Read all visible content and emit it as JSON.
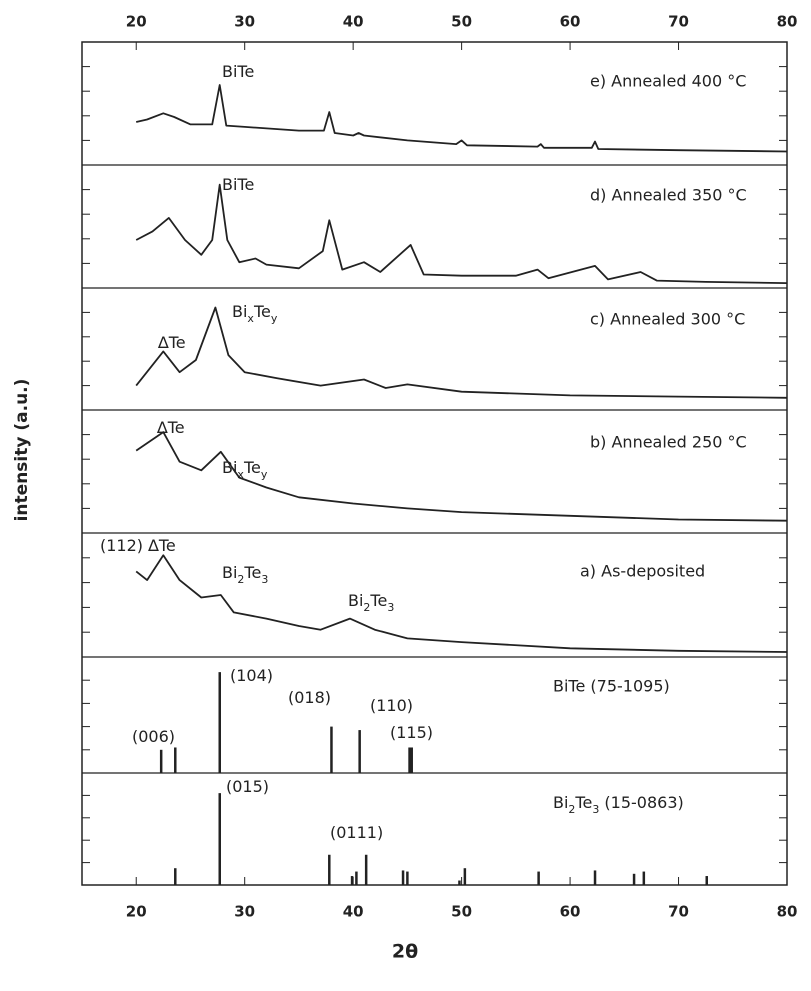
{
  "chart_data": {
    "type": "stacked_xrd",
    "xlabel": "2θ",
    "ylabel": "intensity (a.u.)",
    "xlim": [
      15,
      80
    ],
    "xticks": [
      20,
      30,
      40,
      50,
      60,
      70,
      80
    ],
    "ylim": [
      0,
      100
    ],
    "color": "#222222",
    "panels": [
      {
        "kind": "line",
        "label": "e) Annealed 400 °C",
        "annotations": [
          {
            "parts": [
              "BiTe"
            ],
            "sub": [
              false
            ]
          }
        ],
        "x": [
          20,
          21,
          22.5,
          23.5,
          25,
          27,
          27.7,
          28.3,
          30,
          35,
          37.3,
          37.8,
          38.3,
          40,
          40.5,
          41,
          45,
          49.5,
          50,
          50.5,
          57,
          57.3,
          57.6,
          62,
          62.3,
          62.6,
          70,
          80
        ],
        "values": [
          35,
          37,
          42,
          39,
          33,
          33,
          65,
          32,
          31,
          28,
          28,
          43,
          26,
          24,
          26,
          24,
          20,
          17,
          20,
          16,
          15,
          17,
          14,
          14,
          19,
          13,
          12,
          11
        ]
      },
      {
        "kind": "line",
        "label": "d) Annealed 350 °C",
        "annotations": [
          {
            "parts": [
              "BiTe"
            ],
            "sub": [
              false
            ]
          }
        ],
        "x": [
          20,
          21.5,
          23,
          24.5,
          26,
          27,
          27.7,
          28.4,
          29.5,
          31,
          32,
          35,
          37.2,
          37.8,
          39,
          41,
          42.5,
          45.3,
          46.5,
          50,
          55,
          57,
          58,
          62.3,
          63.5,
          66.5,
          68,
          72.5,
          80
        ],
        "values": [
          39,
          46,
          57,
          39,
          27,
          39,
          84,
          39,
          21,
          24,
          19,
          16,
          30,
          55,
          15,
          21,
          13,
          35,
          11,
          10,
          10,
          15,
          8,
          18,
          7,
          13,
          6,
          5,
          4
        ]
      },
      {
        "kind": "line",
        "label": "c) Annealed 300 °C",
        "annotations": [
          {
            "parts": [
              "Bi",
              "x",
              "Te",
              "y"
            ],
            "sub": [
              false,
              true,
              false,
              true
            ]
          },
          {
            "parts": [
              "∆Te"
            ],
            "sub": [
              false
            ]
          }
        ],
        "x": [
          20,
          22.5,
          24,
          25.5,
          27.3,
          28.5,
          30,
          33,
          37,
          41,
          43,
          45,
          50,
          60,
          70,
          80
        ],
        "values": [
          20,
          48,
          31,
          41,
          84,
          45,
          31,
          26,
          20,
          25,
          18,
          21,
          15,
          12,
          11,
          10
        ]
      },
      {
        "kind": "line",
        "label": "b) Annealed 250 °C",
        "annotations": [
          {
            "parts": [
              "∆Te"
            ],
            "sub": [
              false
            ]
          },
          {
            "parts": [
              "Bi",
              "x",
              "Te",
              "y"
            ],
            "sub": [
              false,
              true,
              false,
              true
            ]
          }
        ],
        "x": [
          20,
          22.5,
          24,
          26,
          27.8,
          29.5,
          32,
          35,
          40,
          45,
          50,
          60,
          70,
          80
        ],
        "values": [
          67,
          82,
          58,
          51,
          66,
          45,
          37,
          29,
          24,
          20,
          17,
          14,
          11,
          10
        ]
      },
      {
        "kind": "line",
        "label": "a) As-deposited",
        "annotations": [
          {
            "parts": [
              "(112) ∆Te"
            ],
            "sub": [
              false
            ]
          },
          {
            "parts": [
              "Bi",
              "2",
              "Te",
              "3"
            ],
            "sub": [
              false,
              true,
              false,
              true
            ]
          },
          {
            "parts": [
              "Bi",
              "2",
              "Te",
              "3"
            ],
            "sub": [
              false,
              true,
              false,
              true
            ]
          }
        ],
        "x": [
          20,
          21,
          22.5,
          24,
          26,
          27.8,
          29,
          32,
          35,
          37,
          39.7,
          42,
          45,
          50,
          60,
          70,
          80
        ],
        "values": [
          69,
          62,
          82,
          62,
          48,
          50,
          36,
          31,
          25,
          22,
          31,
          22,
          15,
          12,
          7,
          5,
          4
        ]
      },
      {
        "kind": "stick",
        "label": "BiTe (75-1095)",
        "annotations": [
          {
            "parts": [
              "(104)"
            ],
            "sub": [
              false
            ]
          },
          {
            "parts": [
              "(018)"
            ],
            "sub": [
              false
            ]
          },
          {
            "parts": [
              "(110)"
            ],
            "sub": [
              false
            ]
          },
          {
            "parts": [
              "(115)"
            ],
            "sub": [
              false
            ]
          },
          {
            "parts": [
              "(006)"
            ],
            "sub": [
              false
            ]
          }
        ],
        "x": [
          22.3,
          23.6,
          27.7,
          38.0,
          40.6,
          45.2,
          45.4
        ],
        "values": [
          20,
          22,
          87,
          40,
          37,
          22,
          22
        ]
      },
      {
        "kind": "stick",
        "label": "Bi2Te3 (15-0863)",
        "label_parts": [
          "Bi",
          "2",
          "Te",
          "3",
          " (15-0863)"
        ],
        "label_sub": [
          false,
          true,
          false,
          true,
          false
        ],
        "annotations": [
          {
            "parts": [
              "(015)"
            ],
            "sub": [
              false
            ]
          },
          {
            "parts": [
              "(0111)"
            ],
            "sub": [
              false
            ]
          }
        ],
        "x": [
          23.6,
          27.7,
          37.8,
          39.9,
          40.3,
          41.2,
          44.6,
          45.0,
          49.8,
          50.3,
          57.1,
          62.3,
          65.9,
          66.8,
          72.6
        ],
        "values": [
          15,
          82,
          27,
          8,
          12,
          27,
          13,
          12,
          4,
          15,
          12,
          13,
          10,
          12,
          8
        ]
      }
    ]
  }
}
